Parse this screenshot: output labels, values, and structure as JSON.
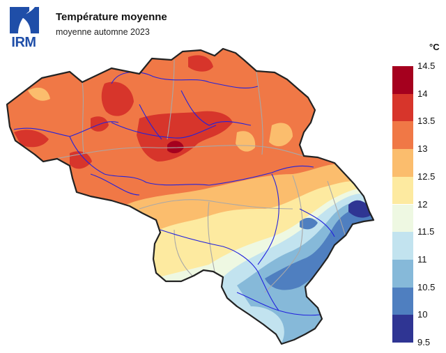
{
  "logo": {
    "text": "IRM",
    "color": "#1f4ea8"
  },
  "header": {
    "title": "Température moyenne",
    "subtitle": "moyenne automne 2023"
  },
  "legend": {
    "unit": "°C",
    "ticks": [
      "14.5",
      "14",
      "13.5",
      "13",
      "12.5",
      "12",
      "11.5",
      "11",
      "10.5",
      "10",
      "9.5"
    ],
    "bins": [
      {
        "from": 14,
        "to": 14.5,
        "color": "#a5001e"
      },
      {
        "from": 13.5,
        "to": 14,
        "color": "#d7352b"
      },
      {
        "from": 13,
        "to": 13.5,
        "color": "#f07846"
      },
      {
        "from": 12.5,
        "to": 13,
        "color": "#fbbd6d"
      },
      {
        "from": 12,
        "to": 12.5,
        "color": "#fdeaa0"
      },
      {
        "from": 11.5,
        "to": 12,
        "color": "#eef8e2"
      },
      {
        "from": 11,
        "to": 11.5,
        "color": "#c2e3ef"
      },
      {
        "from": 10.5,
        "to": 11,
        "color": "#86b9d9"
      },
      {
        "from": 10,
        "to": 10.5,
        "color": "#4f7fc0"
      },
      {
        "from": 9.5,
        "to": 10,
        "color": "#2f3593"
      }
    ]
  },
  "map": {
    "region": "Belgium",
    "border_color": "#222222",
    "river_color": "#2222dd",
    "province_border_color": "#a8a8a8"
  }
}
